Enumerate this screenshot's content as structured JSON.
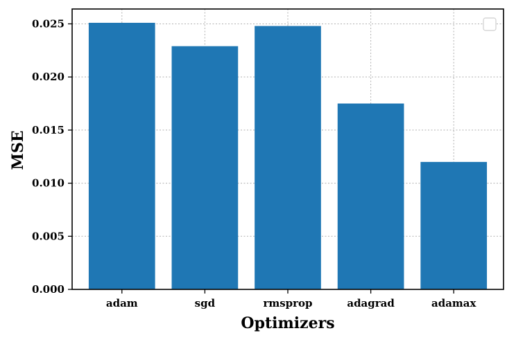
{
  "chart_data": {
    "type": "bar",
    "categories": [
      "adam",
      "sgd",
      "rmsprop",
      "adagrad",
      "adamax"
    ],
    "values": [
      0.0251,
      0.0229,
      0.0248,
      0.0175,
      0.012
    ],
    "title": "",
    "xlabel": "Optimizers",
    "ylabel": "MSE",
    "ylim": [
      0,
      0.0264
    ],
    "yticks": [
      "0.000",
      "0.005",
      "0.010",
      "0.015",
      "0.020",
      "0.025"
    ],
    "ytick_values": [
      0,
      0.005,
      0.01,
      0.015,
      0.02,
      0.025
    ],
    "grid": true,
    "legend": {
      "placement": "top-right",
      "entries": []
    },
    "colors": {
      "bar": "#1f77b4"
    }
  }
}
